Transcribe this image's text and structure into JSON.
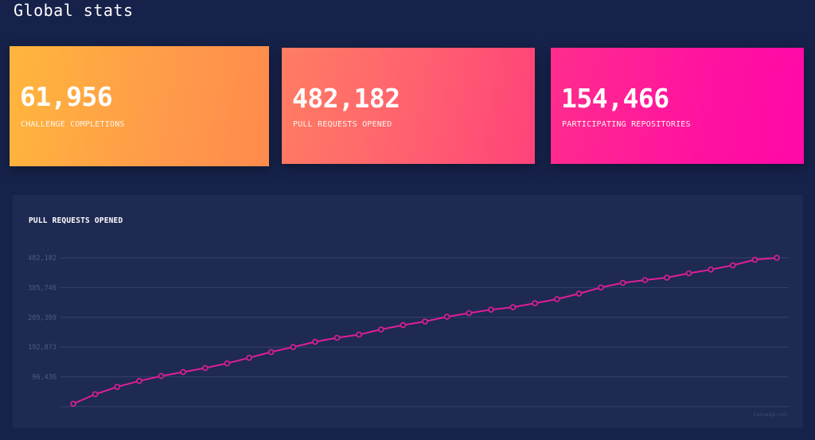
{
  "page": {
    "title": "Global stats"
  },
  "stats": [
    {
      "value": "61,956",
      "label": "CHALLENGE COMPLETIONS"
    },
    {
      "value": "482,182",
      "label": "PULL REQUESTS OPENED"
    },
    {
      "value": "154,466",
      "label": "PARTICIPATING REPOSITORIES"
    }
  ],
  "colors": {
    "background": "#16224a",
    "panel": "#1e2a52",
    "gridline": "#36426b",
    "line": "#e01e96",
    "card1": "#ffa843",
    "card2": "#ff6070",
    "card3": "#ff12a0"
  },
  "chart": {
    "credit": "CanvasJS.com"
  },
  "chart_data": {
    "type": "line",
    "title": "PULL REQUESTS OPENED",
    "xlabel": "",
    "ylabel": "",
    "ylim": [
      0,
      482182
    ],
    "yticks": [
      96436,
      192873,
      289309,
      385746,
      482182
    ],
    "ytick_labels": [
      "96,436",
      "192,873",
      "289,309",
      "385,746",
      "482,182"
    ],
    "grid": true,
    "series": [
      {
        "values": [
          9000,
          40000,
          64000,
          83000,
          99000,
          112000,
          125000,
          140000,
          158000,
          177000,
          193000,
          210000,
          223000,
          233000,
          250000,
          264000,
          276000,
          291000,
          303000,
          314000,
          322000,
          335000,
          348000,
          366000,
          386000,
          401000,
          410000,
          418000,
          432000,
          444000,
          458000,
          476000,
          482182
        ]
      }
    ]
  }
}
